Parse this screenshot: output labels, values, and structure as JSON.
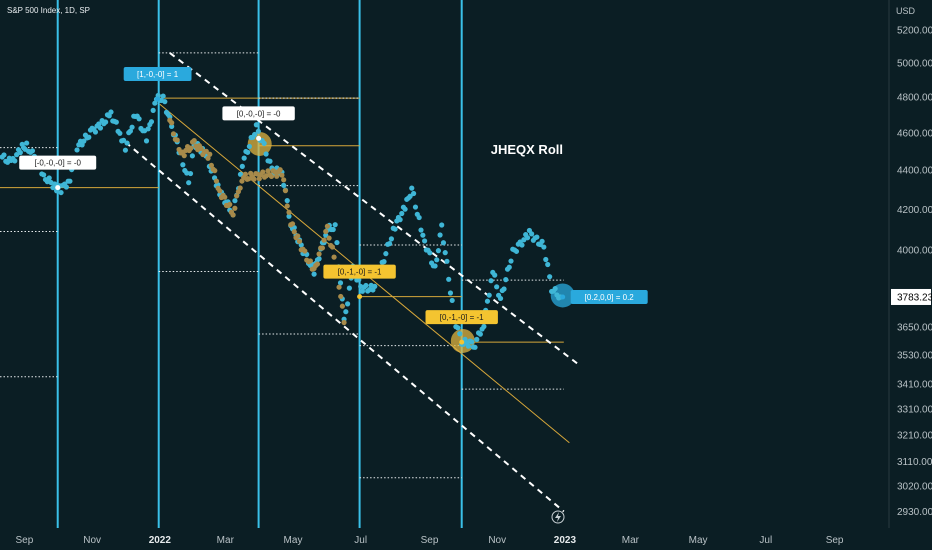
{
  "header": {
    "symbol": "S&P 500 Index, 1D, SP",
    "currency": "USD"
  },
  "watermark": "JHEQX Roll",
  "colors": {
    "background": "#0b1e24",
    "price_dots": "#3fb6d6",
    "gold": "#d7a73a",
    "gold_dots": "#a78a4a",
    "vertical_lines": "#3ac0e8",
    "dashed": "#ffffff",
    "label_blue": "#2aa9dd",
    "label_yellow": "#f4c430",
    "label_white": "#ffffff"
  },
  "current_price": "3783.23",
  "chart_data": {
    "type": "scatter",
    "title": "",
    "xlabel": "",
    "ylabel": "",
    "y_scale": "log",
    "ylim": [
      2890,
      5250
    ],
    "xlim": [
      "2021-08-10",
      "2023-10-20"
    ],
    "grid": false,
    "y_ticks": [
      "5200.00",
      "5000.00",
      "4800.00",
      "4600.00",
      "4400.00",
      "4200.00",
      "4000.00",
      "3783.23",
      "3650.00",
      "3530.00",
      "3410.00",
      "3310.00",
      "3210.00",
      "3110.00",
      "3020.00",
      "2930.00"
    ],
    "x_ticks": [
      {
        "label": "Sep",
        "date": "2021-09-01",
        "bold": false
      },
      {
        "label": "Nov",
        "date": "2021-11-01",
        "bold": false
      },
      {
        "label": "2022",
        "date": "2022-01-01",
        "bold": true
      },
      {
        "label": "Mar",
        "date": "2022-03-01",
        "bold": false
      },
      {
        "label": "May",
        "date": "2022-05-01",
        "bold": false
      },
      {
        "label": "Jul",
        "date": "2022-07-01",
        "bold": false
      },
      {
        "label": "Sep",
        "date": "2022-09-01",
        "bold": false
      },
      {
        "label": "Nov",
        "date": "2022-11-01",
        "bold": false
      },
      {
        "label": "2023",
        "date": "2023-01-01",
        "bold": true
      },
      {
        "label": "Mar",
        "date": "2023-03-01",
        "bold": false
      },
      {
        "label": "May",
        "date": "2023-05-01",
        "bold": false
      },
      {
        "label": "Jul",
        "date": "2023-07-01",
        "bold": false
      },
      {
        "label": "Sep",
        "date": "2023-09-01",
        "bold": false
      }
    ],
    "series": [
      {
        "color": "#3fb6d6",
        "points": [
          [
            "2021-08-12",
            4470
          ],
          [
            "2021-08-20",
            4440
          ],
          [
            "2021-08-30",
            4520
          ],
          [
            "2021-09-03",
            4530
          ],
          [
            "2021-09-10",
            4470
          ],
          [
            "2021-09-20",
            4360
          ],
          [
            "2021-09-30",
            4310
          ],
          [
            "2021-10-04",
            4300
          ],
          [
            "2021-10-12",
            4350
          ],
          [
            "2021-10-20",
            4530
          ],
          [
            "2021-11-01",
            4610
          ],
          [
            "2021-11-10",
            4650
          ],
          [
            "2021-11-18",
            4705
          ],
          [
            "2021-11-26",
            4600
          ],
          [
            "2021-12-01",
            4520
          ],
          [
            "2021-12-10",
            4710
          ],
          [
            "2021-12-20",
            4570
          ],
          [
            "2021-12-29",
            4790
          ],
          [
            "2022-01-04",
            4795
          ],
          [
            "2022-01-10",
            4670
          ],
          [
            "2022-01-20",
            4480
          ],
          [
            "2022-01-27",
            4330
          ],
          [
            "2022-02-01",
            4540
          ],
          [
            "2022-02-10",
            4500
          ],
          [
            "2022-02-24",
            4290
          ],
          [
            "2022-03-08",
            4180
          ],
          [
            "2022-03-18",
            4460
          ],
          [
            "2022-03-29",
            4630
          ],
          [
            "2022-04-05",
            4525
          ],
          [
            "2022-04-12",
            4400
          ],
          [
            "2022-04-21",
            4390
          ],
          [
            "2022-04-29",
            4130
          ],
          [
            "2022-05-10",
            4000
          ],
          [
            "2022-05-20",
            3900
          ],
          [
            "2022-06-01",
            4100
          ],
          [
            "2022-06-08",
            4115
          ],
          [
            "2022-06-16",
            3670
          ],
          [
            "2022-06-24",
            3910
          ],
          [
            "2022-07-01",
            3825
          ],
          [
            "2022-07-12",
            3820
          ],
          [
            "2022-07-22",
            3960
          ],
          [
            "2022-08-01",
            4118
          ],
          [
            "2022-08-10",
            4210
          ],
          [
            "2022-08-16",
            4305
          ],
          [
            "2022-08-26",
            4060
          ],
          [
            "2022-09-06",
            3910
          ],
          [
            "2022-09-12",
            4110
          ],
          [
            "2022-09-23",
            3693
          ],
          [
            "2022-09-30",
            3585
          ],
          [
            "2022-10-12",
            3577
          ],
          [
            "2022-10-20",
            3665
          ],
          [
            "2022-10-28",
            3900
          ],
          [
            "2022-11-04",
            3770
          ],
          [
            "2022-11-15",
            3990
          ],
          [
            "2022-11-30",
            4080
          ],
          [
            "2022-12-02",
            4071
          ],
          [
            "2022-12-13",
            4019
          ],
          [
            "2022-12-20",
            3821
          ],
          [
            "2022-12-28",
            3783
          ]
        ]
      },
      {
        "color": "#a78a4a",
        "points": [
          [
            "2022-01-10",
            4670
          ],
          [
            "2022-01-20",
            4480
          ],
          [
            "2022-02-01",
            4540
          ],
          [
            "2022-02-15",
            4470
          ],
          [
            "2022-02-24",
            4290
          ],
          [
            "2022-03-08",
            4180
          ],
          [
            "2022-03-16",
            4360
          ],
          [
            "2022-04-21",
            4390
          ],
          [
            "2022-04-29",
            4130
          ],
          [
            "2022-05-10",
            4000
          ],
          [
            "2022-05-20",
            3900
          ],
          [
            "2022-06-01",
            4100
          ],
          [
            "2022-06-10",
            3900
          ],
          [
            "2022-06-16",
            3670
          ]
        ]
      }
    ],
    "annotations": [
      {
        "text": "[-0,-0,-0] = -0",
        "style": "white",
        "date": "2021-10-01",
        "value": 4310
      },
      {
        "text": "[1,-0,-0] = 1",
        "style": "blue",
        "date": "2021-12-30",
        "value": 4790
      },
      {
        "text": "[0,-0,-0] = -0",
        "style": "white",
        "date": "2022-03-31",
        "value": 4570
      },
      {
        "text": "[0,-1,-0] = -1",
        "style": "yellow",
        "date": "2022-06-30",
        "value": 3785
      },
      {
        "text": "[0,-1,-0] = -1",
        "style": "yellow",
        "date": "2022-09-30",
        "value": 3585
      },
      {
        "text": "[0.2,0,0] = 0.2",
        "style": "blue",
        "date": "2022-12-30",
        "value": 3783
      }
    ],
    "vertical_lines": [
      "2021-10-01",
      "2021-12-31",
      "2022-03-31",
      "2022-06-30",
      "2022-09-30"
    ],
    "horizontal_levels": [
      {
        "value": 4310,
        "from": "2021-08-10",
        "to": "2021-12-31",
        "style": "gold"
      },
      {
        "value": 4795,
        "from": "2021-12-31",
        "to": "2022-06-30",
        "style": "gold"
      },
      {
        "value": 4530,
        "from": "2022-03-31",
        "to": "2022-06-30",
        "style": "gold"
      },
      {
        "value": 3785,
        "from": "2022-06-30",
        "to": "2022-09-30",
        "style": "gold"
      },
      {
        "value": 3585,
        "from": "2022-09-30",
        "to": "2022-12-31",
        "style": "gold"
      },
      {
        "value": 4520,
        "from": "2021-08-10",
        "to": "2021-10-01",
        "style": "dotted"
      },
      {
        "value": 4090,
        "from": "2021-08-10",
        "to": "2021-10-01",
        "style": "dotted"
      },
      {
        "value": 3440,
        "from": "2021-08-10",
        "to": "2021-10-01",
        "style": "dotted"
      },
      {
        "value": 5060,
        "from": "2021-12-31",
        "to": "2022-03-31",
        "style": "dotted"
      },
      {
        "value": 3900,
        "from": "2021-12-31",
        "to": "2022-03-31",
        "style": "dotted"
      },
      {
        "value": 4795,
        "from": "2022-03-31",
        "to": "2022-06-30",
        "style": "dotted"
      },
      {
        "value": 4320,
        "from": "2022-03-31",
        "to": "2022-06-30",
        "style": "dotted"
      },
      {
        "value": 3620,
        "from": "2022-03-31",
        "to": "2022-06-30",
        "style": "dotted"
      },
      {
        "value": 4025,
        "from": "2022-06-30",
        "to": "2022-09-30",
        "style": "dotted"
      },
      {
        "value": 3570,
        "from": "2022-06-30",
        "to": "2022-09-30",
        "style": "dotted"
      },
      {
        "value": 3050,
        "from": "2022-06-30",
        "to": "2022-09-30",
        "style": "dotted"
      },
      {
        "value": 3860,
        "from": "2022-09-30",
        "to": "2022-12-31",
        "style": "dotted"
      },
      {
        "value": 3390,
        "from": "2022-09-30",
        "to": "2022-12-31",
        "style": "dotted"
      }
    ],
    "trend_lines": [
      {
        "style": "gold",
        "from": [
          "2022-01-01",
          4760
        ],
        "to": [
          "2023-01-05",
          3180
        ]
      },
      {
        "style": "dashed",
        "from": [
          "2022-01-10",
          5060
        ],
        "to": [
          "2023-01-15",
          3485
        ]
      },
      {
        "style": "dashed",
        "from": [
          "2021-12-01",
          4550
        ],
        "to": [
          "2022-12-31",
          2930
        ]
      }
    ],
    "highlight_circles": [
      {
        "date": "2022-04-01",
        "value": 4540,
        "color": "#e0b440"
      },
      {
        "date": "2022-10-01",
        "value": 3590,
        "color": "#e0b440"
      },
      {
        "date": "2022-12-30",
        "value": 3790,
        "color": "#2aa9dd"
      }
    ]
  }
}
